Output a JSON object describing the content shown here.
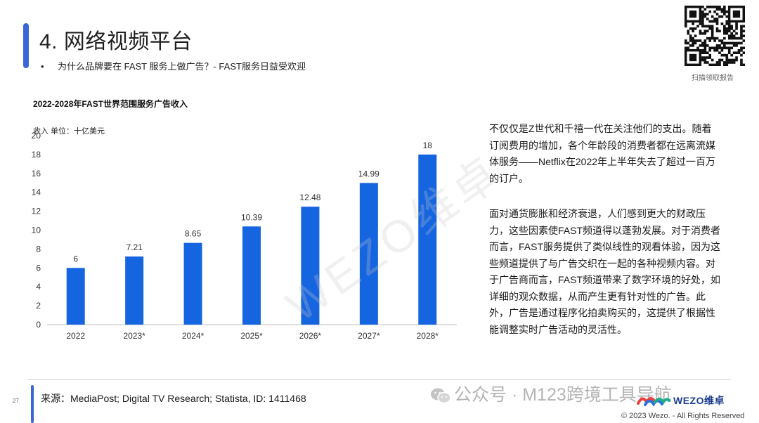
{
  "header": {
    "title": "4. 网络视频平台",
    "bullet": "•",
    "subtitle": "为什么品牌要在 FAST 服务上做广告？- FAST服务日益受欢迎"
  },
  "qr": {
    "caption": "扫描领取报告"
  },
  "chart_data": {
    "type": "bar",
    "title": "2022-2028年FAST世界范围服务广告收入",
    "unit_label": "收入 单位：十亿美元",
    "categories": [
      "2022",
      "2023*",
      "2024*",
      "2025*",
      "2026*",
      "2027*",
      "2028*"
    ],
    "values": [
      6,
      7.21,
      8.65,
      10.39,
      12.48,
      14.99,
      18
    ],
    "value_labels": [
      "6",
      "7.21",
      "8.65",
      "10.39",
      "12.48",
      "14.99",
      "18"
    ],
    "ylim": [
      0,
      20
    ],
    "yticks": [
      0,
      2,
      4,
      6,
      8,
      10,
      12,
      14,
      16,
      18,
      20
    ],
    "bar_color": "#1565e0",
    "grid": false
  },
  "body": {
    "para1": "不仅仅是Z世代和千禧一代在关注他们的支出。随着订阅费用的增加，各个年龄段的消费者都在远离流媒体服务——Netflix在2022年上半年失去了超过一百万的订户。",
    "para2": "面对通货膨胀和经济衰退，人们感到更大的财政压力，这些因素使FAST频道得以蓬勃发展。对于消费者而言，FAST服务提供了类似线性的观看体验，因为这些频道提供了与广告交织在一起的各种视频内容。对于广告商而言，FAST频道带来了数字环境的好处，如详细的观众数据，从而产生更有针对性的广告。此外，广告是通过程序化拍卖购买的，这提供了根据性能调整实时广告活动的灵活性。"
  },
  "watermark": "WEZO维卓",
  "footer": {
    "source": "来源：MediaPost; Digital TV Research; Statista, ID: 1411468",
    "page_number": "27",
    "channel_watermark": "公众号 · M123跨境工具导航",
    "logo_text": "WEZO维卓",
    "copyright": "© 2023 Wezo. - All Rights Reserved"
  }
}
